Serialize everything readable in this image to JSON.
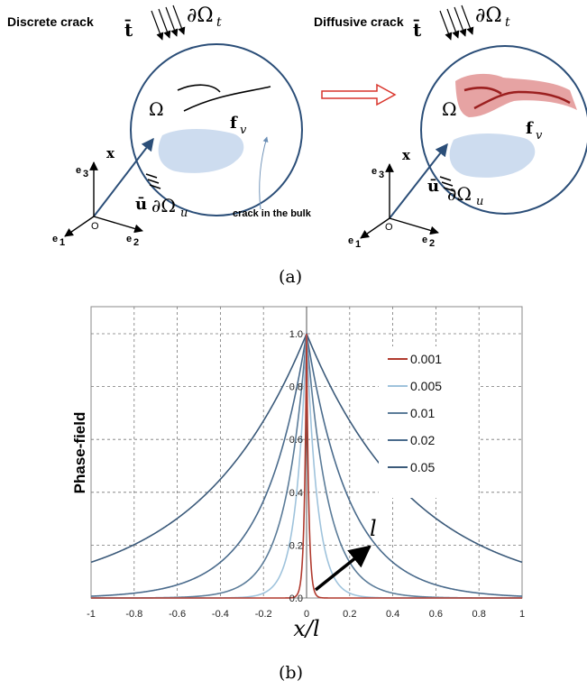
{
  "panel_a": {
    "left_title": "Discrete crack",
    "right_title": "Diffusive crack",
    "traction": "t̄",
    "boundary_t": "∂Ω",
    "boundary_t_sub": "t",
    "domain": "Ω",
    "body_force": "f",
    "body_force_sub": "v",
    "position": "x",
    "displacement": "ū",
    "boundary_u": "∂Ω",
    "boundary_u_sub": "u",
    "origin": "O",
    "e1": "e",
    "e1_sub": "1",
    "e2": "e",
    "e2_sub": "2",
    "e3": "e",
    "e3_sub": "3",
    "crack_note": "crack in the bulk",
    "caption": "(a)"
  },
  "panel_b": {
    "caption": "(b)",
    "legend_arrow_label": "l"
  },
  "chart_data": {
    "type": "line",
    "xlabel": "x/l",
    "ylabel": "Phase-field",
    "xlim": [
      -1,
      1
    ],
    "ylim": [
      0,
      1.1
    ],
    "x_ticks": [
      "-1",
      "-0.8",
      "-0.6",
      "-0.4",
      "-0.2",
      "0",
      "0.2",
      "0.4",
      "0.6",
      "0.8",
      "1"
    ],
    "y_ticks": [
      "0.0",
      "0.2",
      "0.4",
      "0.6",
      "0.8",
      "1.0"
    ],
    "grid": true,
    "legend_position": "top-right",
    "model": "phase-field = exp(-|x|/l)",
    "series": [
      {
        "name": "0.001",
        "l": 0.001,
        "color": "#b03a2e"
      },
      {
        "name": "0.005",
        "l": 0.005,
        "color": "#9fc3dc"
      },
      {
        "name": "0.01",
        "l": 0.01,
        "color": "#5b7c99"
      },
      {
        "name": "0.02",
        "l": 0.02,
        "color": "#4a6b8c"
      },
      {
        "name": "0.05",
        "l": 0.05,
        "color": "#3b5a7a"
      }
    ]
  }
}
